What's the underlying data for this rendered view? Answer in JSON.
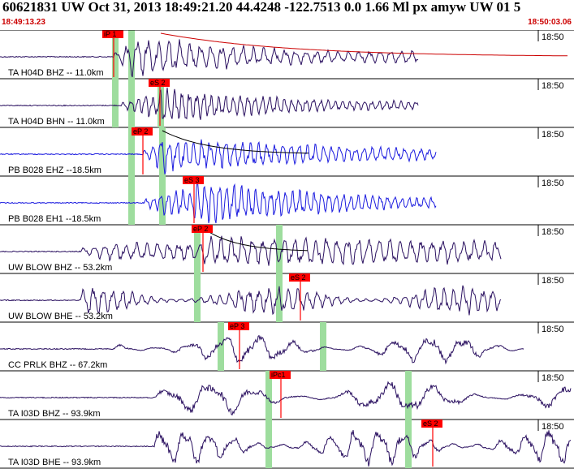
{
  "header": {
    "event_title": "60621831 UW Oct 31, 2013 18:49:21.20   44.4248 -122.7513  0.0 1.66 Ml px amyw UW 01   5",
    "time_start": "18:49:13.23",
    "time_end": "18:50:03.06"
  },
  "colors": {
    "trace_dark": "#2a1060",
    "trace_blue": "#1a1adf",
    "pick_fill": "#ff0000",
    "window_green": "#9edd9e",
    "decay_curve_red": "#cc0000"
  },
  "traces": [
    {
      "label": "TA H04D BHZ -- 11.0km",
      "tick": "18:50",
      "color": "dark",
      "picks": [
        {
          "label": "iP 1",
          "x": 140
        }
      ],
      "windows": [
        142,
        162
      ],
      "onset": 140,
      "end": 515,
      "amp": 26,
      "period": 13,
      "decay": 0.6
    },
    {
      "label": "TA H04D BHN -- 11.0km",
      "tick": "18:50",
      "color": "dark",
      "picks": [
        {
          "label": "eS 2",
          "x": 197
        }
      ],
      "windows": [
        142,
        162,
        198
      ],
      "onset": 150,
      "end": 515,
      "amp": 22,
      "period": 9,
      "decay": 0.7
    },
    {
      "label": "PB B028 EHZ --18.5km",
      "tick": "18:50",
      "color": "blue",
      "picks": [
        {
          "label": "eP 2",
          "x": 176
        }
      ],
      "windows": [
        162,
        200
      ],
      "onset": 176,
      "end": 537,
      "amp": 22,
      "period": 10,
      "decay": 0.4
    },
    {
      "label": "PB B028 EH1 --18.5km",
      "tick": "18:50",
      "color": "blue",
      "picks": [
        {
          "label": "eS 3",
          "x": 239
        }
      ],
      "windows": [
        162,
        200
      ],
      "onset": 178,
      "end": 537,
      "amp": 26,
      "period": 9,
      "decay": 0.6
    },
    {
      "label": "UW BLOW BHZ -- 53.2km",
      "tick": "18:50",
      "color": "dark",
      "picks": [
        {
          "label": "eP 2",
          "x": 250
        }
      ],
      "windows": [
        243,
        344
      ],
      "onset": 100,
      "end": 617,
      "amp": 17,
      "period": 13,
      "decay": 0.1
    },
    {
      "label": "UW BLOW BHE -- 53.2km",
      "tick": "18:50",
      "color": "dark",
      "picks": [
        {
          "label": "eS 2",
          "x": 370
        }
      ],
      "windows": [
        243,
        344
      ],
      "onset": 100,
      "end": 617,
      "amp": 16,
      "period": 12,
      "decay": 0.0
    },
    {
      "label": "CC PRLK BHZ -- 67.2km",
      "tick": "18:50",
      "color": "dark",
      "picks": [
        {
          "label": "eP 3",
          "x": 295
        }
      ],
      "windows": [
        272,
        398
      ],
      "onset": 140,
      "end": 645,
      "amp": 16,
      "period": 42,
      "decay": 0.0
    },
    {
      "label": "TA I03D BHZ -- 93.9km",
      "tick": "18:50",
      "color": "dark",
      "picks": [
        {
          "label": "iPc1",
          "x": 346
        }
      ],
      "windows": [
        331,
        503
      ],
      "onset": 190,
      "end": 707,
      "amp": 18,
      "period": 55,
      "decay": 0.0
    },
    {
      "label": "TA I03D BHE -- 93.9km",
      "tick": "18:50",
      "color": "dark",
      "picks": [
        {
          "label": "eS 2",
          "x": 533
        }
      ],
      "windows": [
        331,
        503
      ],
      "onset": 190,
      "end": 707,
      "amp": 20,
      "period": 30,
      "decay": 0.0
    }
  ]
}
